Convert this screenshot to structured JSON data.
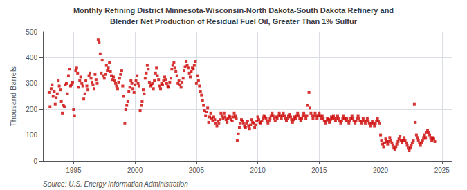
{
  "chart_data": {
    "type": "scatter",
    "title": "Monthly Refining District Minnesota-Wisconsin-North Dakota-South Dakota Refinery and",
    "subtitle": "Blender Net Production of Residual Fuel Oil, Greater Than 1% Sulfur",
    "ylabel": "Thousand Barrels",
    "annotations": [
      "Source: U.S. Energy Information Administration"
    ],
    "color": "#cc0000",
    "marker": "square",
    "grid": true,
    "xlim": [
      1992.5,
      2025.8
    ],
    "xticks": [
      1995,
      2000,
      2005,
      2010,
      2015,
      2020,
      2025
    ],
    "ylim": [
      0,
      500
    ],
    "yticks": [
      0,
      100,
      200,
      300,
      400,
      500
    ],
    "x": [
      1993.0,
      1993.08,
      1993.17,
      1993.25,
      1993.33,
      1993.42,
      1993.5,
      1993.58,
      1993.67,
      1993.75,
      1993.83,
      1993.92,
      1994.0,
      1994.08,
      1994.17,
      1994.25,
      1994.33,
      1994.42,
      1994.5,
      1994.58,
      1994.67,
      1994.75,
      1994.83,
      1994.92,
      1995.0,
      1995.08,
      1995.17,
      1995.25,
      1995.33,
      1995.42,
      1995.5,
      1995.58,
      1995.67,
      1995.75,
      1995.83,
      1995.92,
      1996.0,
      1996.08,
      1996.17,
      1996.25,
      1996.33,
      1996.42,
      1996.5,
      1996.58,
      1996.67,
      1996.75,
      1996.83,
      1996.92,
      1997.0,
      1997.08,
      1997.17,
      1997.25,
      1997.33,
      1997.42,
      1997.5,
      1997.58,
      1997.67,
      1997.75,
      1997.83,
      1997.92,
      1998.0,
      1998.08,
      1998.17,
      1998.25,
      1998.33,
      1998.42,
      1998.5,
      1998.58,
      1998.67,
      1998.75,
      1998.83,
      1998.92,
      1999.0,
      1999.08,
      1999.17,
      1999.25,
      1999.33,
      1999.42,
      1999.5,
      1999.58,
      1999.67,
      1999.75,
      1999.83,
      1999.92,
      2000.0,
      2000.08,
      2000.17,
      2000.25,
      2000.33,
      2000.42,
      2000.5,
      2000.58,
      2000.67,
      2000.75,
      2000.83,
      2000.92,
      2001.0,
      2001.08,
      2001.17,
      2001.25,
      2001.33,
      2001.42,
      2001.5,
      2001.58,
      2001.67,
      2001.75,
      2001.83,
      2001.92,
      2002.0,
      2002.08,
      2002.17,
      2002.25,
      2002.33,
      2002.42,
      2002.5,
      2002.58,
      2002.67,
      2002.75,
      2002.83,
      2002.92,
      2003.0,
      2003.08,
      2003.17,
      2003.25,
      2003.33,
      2003.42,
      2003.5,
      2003.58,
      2003.67,
      2003.75,
      2003.83,
      2003.92,
      2004.0,
      2004.08,
      2004.17,
      2004.25,
      2004.33,
      2004.42,
      2004.5,
      2004.58,
      2004.67,
      2004.75,
      2004.83,
      2004.92,
      2005.0,
      2005.08,
      2005.17,
      2005.25,
      2005.33,
      2005.42,
      2005.5,
      2005.58,
      2005.67,
      2005.75,
      2005.83,
      2005.92,
      2006.0,
      2006.08,
      2006.17,
      2006.25,
      2006.33,
      2006.42,
      2006.5,
      2006.58,
      2006.67,
      2006.75,
      2006.83,
      2006.92,
      2007.0,
      2007.08,
      2007.17,
      2007.25,
      2007.33,
      2007.42,
      2007.5,
      2007.58,
      2007.67,
      2007.75,
      2007.83,
      2007.92,
      2008.0,
      2008.08,
      2008.17,
      2008.25,
      2008.33,
      2008.42,
      2008.5,
      2008.58,
      2008.67,
      2008.75,
      2008.83,
      2008.92,
      2009.0,
      2009.08,
      2009.17,
      2009.25,
      2009.33,
      2009.42,
      2009.5,
      2009.58,
      2009.67,
      2009.75,
      2009.83,
      2009.92,
      2010.0,
      2010.08,
      2010.17,
      2010.25,
      2010.33,
      2010.42,
      2010.5,
      2010.58,
      2010.67,
      2010.75,
      2010.83,
      2010.92,
      2011.0,
      2011.08,
      2011.17,
      2011.25,
      2011.33,
      2011.42,
      2011.5,
      2011.58,
      2011.67,
      2011.75,
      2011.83,
      2011.92,
      2012.0,
      2012.08,
      2012.17,
      2012.25,
      2012.33,
      2012.42,
      2012.5,
      2012.58,
      2012.67,
      2012.75,
      2012.83,
      2012.92,
      2013.0,
      2013.08,
      2013.17,
      2013.25,
      2013.33,
      2013.42,
      2013.5,
      2013.58,
      2013.67,
      2013.75,
      2013.83,
      2013.92,
      2014.0,
      2014.08,
      2014.17,
      2014.25,
      2014.33,
      2014.42,
      2014.5,
      2014.58,
      2014.67,
      2014.75,
      2014.83,
      2014.92,
      2015.0,
      2015.08,
      2015.17,
      2015.25,
      2015.33,
      2015.42,
      2015.5,
      2015.58,
      2015.67,
      2015.75,
      2015.83,
      2015.92,
      2016.0,
      2016.08,
      2016.17,
      2016.25,
      2016.33,
      2016.42,
      2016.5,
      2016.58,
      2016.67,
      2016.75,
      2016.83,
      2016.92,
      2017.0,
      2017.08,
      2017.17,
      2017.25,
      2017.33,
      2017.42,
      2017.5,
      2017.58,
      2017.67,
      2017.75,
      2017.83,
      2017.92,
      2018.0,
      2018.08,
      2018.17,
      2018.25,
      2018.33,
      2018.42,
      2018.5,
      2018.58,
      2018.67,
      2018.75,
      2018.83,
      2018.92,
      2019.0,
      2019.08,
      2019.17,
      2019.25,
      2019.33,
      2019.42,
      2019.5,
      2019.58,
      2019.67,
      2019.75,
      2019.83,
      2019.92,
      2020.0,
      2020.08,
      2020.17,
      2020.25,
      2020.33,
      2020.42,
      2020.5,
      2020.58,
      2020.67,
      2020.75,
      2020.83,
      2020.92,
      2021.0,
      2021.08,
      2021.17,
      2021.25,
      2021.33,
      2021.42,
      2021.5,
      2021.58,
      2021.67,
      2021.75,
      2021.83,
      2021.92,
      2022.0,
      2022.08,
      2022.17,
      2022.25,
      2022.33,
      2022.42,
      2022.5,
      2022.58,
      2022.67,
      2022.75,
      2022.83,
      2022.92,
      2023.0,
      2023.08,
      2023.17,
      2023.25,
      2023.33,
      2023.42,
      2023.5,
      2023.58,
      2023.67,
      2023.75,
      2023.83,
      2023.92,
      2024.0,
      2024.08,
      2024.17,
      2024.25,
      2024.33,
      2024.42
    ],
    "values": [
      265,
      210,
      280,
      295,
      250,
      270,
      220,
      245,
      260,
      310,
      290,
      275,
      230,
      185,
      215,
      210,
      295,
      300,
      260,
      330,
      355,
      290,
      295,
      305,
      200,
      175,
      350,
      360,
      340,
      285,
      310,
      325,
      300,
      290,
      240,
      260,
      310,
      290,
      275,
      330,
      340,
      320,
      305,
      295,
      280,
      335,
      315,
      300,
      470,
      460,
      415,
      340,
      390,
      330,
      320,
      335,
      370,
      350,
      360,
      380,
      345,
      330,
      315,
      325,
      310,
      300,
      290,
      280,
      305,
      320,
      335,
      350,
      290,
      250,
      145,
      200,
      215,
      230,
      270,
      285,
      310,
      300,
      280,
      265,
      295,
      310,
      330,
      300,
      290,
      195,
      215,
      230,
      275,
      260,
      320,
      340,
      370,
      355,
      305,
      290,
      295,
      300,
      280,
      310,
      340,
      360,
      330,
      315,
      290,
      280,
      300,
      295,
      310,
      325,
      315,
      300,
      290,
      285,
      305,
      320,
      355,
      370,
      380,
      360,
      345,
      330,
      300,
      310,
      295,
      285,
      305,
      320,
      350,
      365,
      385,
      370,
      360,
      340,
      325,
      345,
      360,
      355,
      370,
      385,
      300,
      330,
      310,
      290,
      270,
      255,
      235,
      215,
      195,
      175,
      190,
      205,
      150,
      170,
      185,
      165,
      155,
      170,
      160,
      145,
      135,
      155,
      145,
      160,
      185,
      175,
      165,
      185,
      170,
      160,
      150,
      165,
      175,
      170,
      160,
      155,
      170,
      185,
      175,
      165,
      80,
      105,
      130,
      145,
      160,
      155,
      145,
      135,
      130,
      145,
      155,
      135,
      125,
      140,
      160,
      150,
      145,
      130,
      140,
      155,
      170,
      160,
      150,
      145,
      155,
      165,
      175,
      170,
      165,
      155,
      145,
      155,
      165,
      175,
      185,
      175,
      165,
      155,
      170,
      165,
      175,
      185,
      175,
      165,
      175,
      185,
      175,
      165,
      155,
      165,
      175,
      180,
      170,
      160,
      150,
      160,
      170,
      165,
      175,
      185,
      175,
      165,
      155,
      165,
      175,
      185,
      175,
      165,
      175,
      215,
      265,
      205,
      185,
      175,
      165,
      175,
      185,
      175,
      165,
      175,
      185,
      175,
      165,
      175,
      165,
      155,
      145,
      155,
      165,
      160,
      150,
      160,
      170,
      165,
      175,
      165,
      155,
      165,
      175,
      165,
      155,
      145,
      155,
      165,
      175,
      165,
      155,
      165,
      155,
      145,
      155,
      165,
      175,
      165,
      155,
      145,
      155,
      165,
      175,
      165,
      155,
      145,
      155,
      165,
      155,
      145,
      155,
      165,
      155,
      145,
      135,
      145,
      155,
      145,
      135,
      145,
      155,
      165,
      155,
      145,
      100,
      80,
      65,
      55,
      70,
      85,
      75,
      65,
      75,
      90,
      80,
      70,
      60,
      50,
      45,
      55,
      65,
      75,
      85,
      95,
      80,
      70,
      80,
      90,
      80,
      70,
      60,
      50,
      40,
      50,
      60,
      70,
      80,
      220,
      150,
      100,
      90,
      80,
      70,
      60,
      70,
      80,
      90,
      100,
      90,
      110,
      120,
      110,
      100,
      90,
      80,
      90,
      85,
      75
    ]
  }
}
